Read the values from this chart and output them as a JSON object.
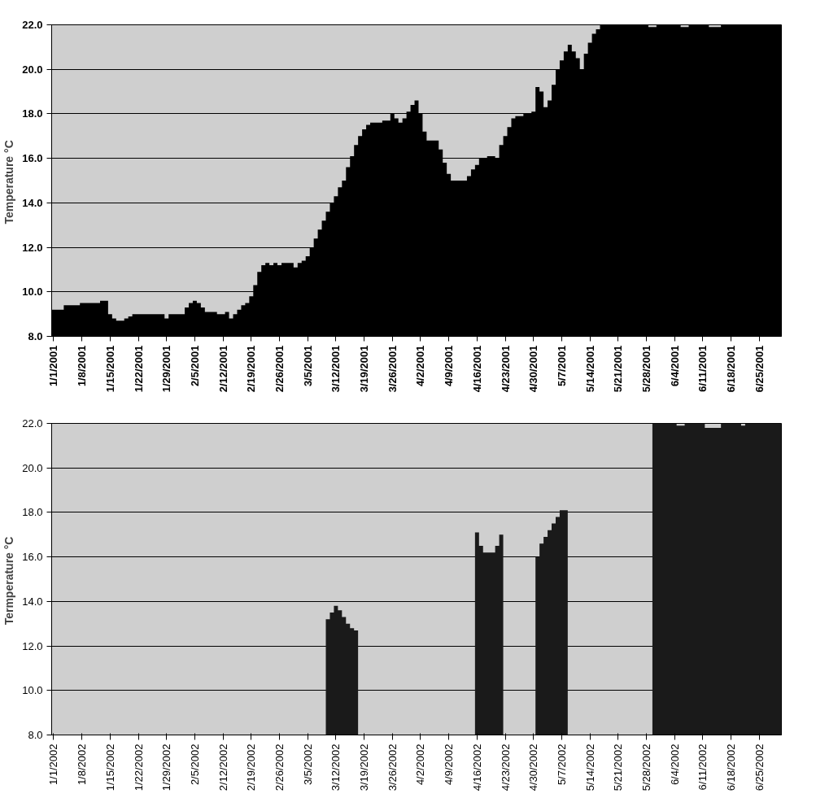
{
  "chart_data": [
    {
      "type": "area",
      "ylabel": "Temperature  °C",
      "grid": "y",
      "xlim": [
        "2000-12-31T12:00",
        "2001-06-30T12:00"
      ],
      "ylim": [
        8,
        22
      ],
      "yticks": [
        {
          "value": 8,
          "label": "8.0"
        },
        {
          "value": 10,
          "label": "10.0"
        },
        {
          "value": 12,
          "label": "12.0"
        },
        {
          "value": 14,
          "label": "14.0"
        },
        {
          "value": 16,
          "label": "16.0"
        },
        {
          "value": 18,
          "label": "18.0"
        },
        {
          "value": 20,
          "label": "20.0"
        },
        {
          "value": 22,
          "label": "22.0"
        }
      ],
      "xticks": [
        {
          "value": "2001-01-01",
          "label": "1/1/2001"
        },
        {
          "value": "2001-01-08",
          "label": "1/8/2001"
        },
        {
          "value": "2001-01-15",
          "label": "1/15/2001"
        },
        {
          "value": "2001-01-22",
          "label": "1/22/2001"
        },
        {
          "value": "2001-01-29",
          "label": "1/29/2001"
        },
        {
          "value": "2001-02-05",
          "label": "2/5/2001"
        },
        {
          "value": "2001-02-12",
          "label": "2/12/2001"
        },
        {
          "value": "2001-02-19",
          "label": "2/19/2001"
        },
        {
          "value": "2001-02-26",
          "label": "2/26/2001"
        },
        {
          "value": "2001-03-05",
          "label": "3/5/2001"
        },
        {
          "value": "2001-03-12",
          "label": "3/12/2001"
        },
        {
          "value": "2001-03-19",
          "label": "3/19/2001"
        },
        {
          "value": "2001-03-26",
          "label": "3/26/2001"
        },
        {
          "value": "2001-04-02",
          "label": "4/2/2001"
        },
        {
          "value": "2001-04-09",
          "label": "4/9/2001"
        },
        {
          "value": "2001-04-16",
          "label": "4/16/2001"
        },
        {
          "value": "2001-04-23",
          "label": "4/23/2001"
        },
        {
          "value": "2001-04-30",
          "label": "4/30/2001"
        },
        {
          "value": "2001-05-07",
          "label": "5/7/2001"
        },
        {
          "value": "2001-05-14",
          "label": "5/14/2001"
        },
        {
          "value": "2001-05-21",
          "label": "5/21/2001"
        },
        {
          "value": "2001-05-28",
          "label": "5/28/2001"
        },
        {
          "value": "2001-06-04",
          "label": "6/4/2001"
        },
        {
          "value": "2001-06-11",
          "label": "6/11/2001"
        },
        {
          "value": "2001-06-18",
          "label": "6/18/2001"
        },
        {
          "value": "2001-06-25",
          "label": "6/25/2001"
        }
      ],
      "series": [
        {
          "color": "#000000",
          "x": [
            "2001-01-01",
            "2001-01-02",
            "2001-01-03",
            "2001-01-04",
            "2001-01-05",
            "2001-01-06",
            "2001-01-07",
            "2001-01-08",
            "2001-01-09",
            "2001-01-10",
            "2001-01-11",
            "2001-01-12",
            "2001-01-13",
            "2001-01-14",
            "2001-01-15",
            "2001-01-16",
            "2001-01-17",
            "2001-01-18",
            "2001-01-19",
            "2001-01-20",
            "2001-01-21",
            "2001-01-22",
            "2001-01-23",
            "2001-01-24",
            "2001-01-25",
            "2001-01-26",
            "2001-01-27",
            "2001-01-28",
            "2001-01-29",
            "2001-01-30",
            "2001-01-31",
            "2001-02-01",
            "2001-02-02",
            "2001-02-03",
            "2001-02-04",
            "2001-02-05",
            "2001-02-06",
            "2001-02-07",
            "2001-02-08",
            "2001-02-09",
            "2001-02-10",
            "2001-02-11",
            "2001-02-12",
            "2001-02-13",
            "2001-02-14",
            "2001-02-15",
            "2001-02-16",
            "2001-02-17",
            "2001-02-18",
            "2001-02-19",
            "2001-02-20",
            "2001-02-21",
            "2001-02-22",
            "2001-02-23",
            "2001-02-24",
            "2001-02-25",
            "2001-02-26",
            "2001-02-27",
            "2001-02-28",
            "2001-03-01",
            "2001-03-02",
            "2001-03-03",
            "2001-03-04",
            "2001-03-05",
            "2001-03-06",
            "2001-03-07",
            "2001-03-08",
            "2001-03-09",
            "2001-03-10",
            "2001-03-11",
            "2001-03-12",
            "2001-03-13",
            "2001-03-14",
            "2001-03-15",
            "2001-03-16",
            "2001-03-17",
            "2001-03-18",
            "2001-03-19",
            "2001-03-20",
            "2001-03-21",
            "2001-03-22",
            "2001-03-23",
            "2001-03-24",
            "2001-03-25",
            "2001-03-26",
            "2001-03-27",
            "2001-03-28",
            "2001-03-29",
            "2001-03-30",
            "2001-03-31",
            "2001-04-01",
            "2001-04-02",
            "2001-04-03",
            "2001-04-04",
            "2001-04-05",
            "2001-04-06",
            "2001-04-07",
            "2001-04-08",
            "2001-04-09",
            "2001-04-10",
            "2001-04-11",
            "2001-04-12",
            "2001-04-13",
            "2001-04-14",
            "2001-04-15",
            "2001-04-16",
            "2001-04-17",
            "2001-04-18",
            "2001-04-19",
            "2001-04-20",
            "2001-04-21",
            "2001-04-22",
            "2001-04-23",
            "2001-04-24",
            "2001-04-25",
            "2001-04-26",
            "2001-04-27",
            "2001-04-28",
            "2001-04-29",
            "2001-04-30",
            "2001-05-01",
            "2001-05-02",
            "2001-05-03",
            "2001-05-04",
            "2001-05-05",
            "2001-05-06",
            "2001-05-07",
            "2001-05-08",
            "2001-05-09",
            "2001-05-10",
            "2001-05-11",
            "2001-05-12",
            "2001-05-13",
            "2001-05-14",
            "2001-05-15",
            "2001-05-16",
            "2001-05-17",
            "2001-05-18",
            "2001-05-19",
            "2001-05-20",
            "2001-05-21",
            "2001-05-22",
            "2001-05-23",
            "2001-05-24",
            "2001-05-25",
            "2001-05-26",
            "2001-05-27",
            "2001-05-28",
            "2001-05-29",
            "2001-05-30",
            "2001-05-31",
            "2001-06-01",
            "2001-06-02",
            "2001-06-03",
            "2001-06-04",
            "2001-06-05",
            "2001-06-06",
            "2001-06-07",
            "2001-06-08",
            "2001-06-09",
            "2001-06-10",
            "2001-06-11",
            "2001-06-12",
            "2001-06-13",
            "2001-06-14",
            "2001-06-15",
            "2001-06-16",
            "2001-06-17",
            "2001-06-18",
            "2001-06-19",
            "2001-06-20",
            "2001-06-21",
            "2001-06-22",
            "2001-06-23",
            "2001-06-24",
            "2001-06-25",
            "2001-06-26",
            "2001-06-27",
            "2001-06-28",
            "2001-06-29",
            "2001-06-30"
          ],
          "values": [
            9.2,
            9.2,
            9.2,
            9.4,
            9.4,
            9.4,
            9.4,
            9.5,
            9.5,
            9.5,
            9.5,
            9.5,
            9.6,
            9.6,
            9.0,
            8.8,
            8.7,
            8.7,
            8.8,
            8.9,
            9.0,
            9.0,
            9.0,
            9.0,
            9.0,
            9.0,
            9.0,
            9.0,
            8.8,
            9.0,
            9.0,
            9.0,
            9.0,
            9.3,
            9.5,
            9.6,
            9.5,
            9.3,
            9.1,
            9.1,
            9.1,
            9.0,
            9.0,
            9.1,
            8.8,
            9.0,
            9.2,
            9.4,
            9.5,
            9.8,
            10.3,
            10.9,
            11.2,
            11.3,
            11.2,
            11.3,
            11.2,
            11.3,
            11.3,
            11.3,
            11.1,
            11.3,
            11.4,
            11.6,
            12.0,
            12.4,
            12.8,
            13.2,
            13.6,
            14.0,
            14.3,
            14.7,
            15.0,
            15.6,
            16.1,
            16.6,
            17.0,
            17.3,
            17.5,
            17.6,
            17.6,
            17.6,
            17.7,
            17.7,
            18.0,
            17.8,
            17.6,
            17.8,
            18.1,
            18.4,
            18.6,
            18.0,
            17.2,
            16.8,
            16.8,
            16.8,
            16.4,
            15.8,
            15.3,
            15.0,
            15.0,
            15.0,
            15.0,
            15.2,
            15.5,
            15.7,
            16.0,
            16.0,
            16.1,
            16.1,
            16.0,
            16.6,
            17.0,
            17.4,
            17.8,
            17.9,
            17.9,
            18.0,
            18.0,
            18.1,
            19.2,
            19.0,
            18.3,
            18.6,
            19.3,
            20.0,
            20.4,
            20.8,
            21.1,
            20.8,
            20.5,
            20.0,
            20.7,
            21.2,
            21.6,
            21.8,
            22.0,
            22.0,
            22.0,
            22.0,
            22.0,
            22.0,
            22.0,
            22.0,
            22.0,
            22.0,
            22.0,
            22.0,
            21.9,
            21.9,
            22.0,
            22.0,
            22.0,
            22.0,
            22.0,
            22.0,
            21.9,
            21.9,
            22.0,
            22.0,
            22.0,
            22.0,
            22.0,
            21.9,
            21.9,
            21.9,
            22.0,
            22.0,
            22.0,
            22.0,
            22.0,
            22.0,
            22.0,
            22.0,
            22.0,
            22.0,
            22.0,
            22.0,
            22.0,
            22.0,
            22.0
          ]
        }
      ]
    },
    {
      "type": "area",
      "ylabel": "Termperature  °C",
      "grid": "y",
      "xlim": [
        "2001-12-31T12:00",
        "2002-06-30T12:00"
      ],
      "ylim": [
        8,
        22
      ],
      "yticks": [
        {
          "value": 8,
          "label": "8.0"
        },
        {
          "value": 10,
          "label": "10.0"
        },
        {
          "value": 12,
          "label": "12.0"
        },
        {
          "value": 14,
          "label": "14.0"
        },
        {
          "value": 16,
          "label": "16.0"
        },
        {
          "value": 18,
          "label": "18.0"
        },
        {
          "value": 20,
          "label": "20.0"
        },
        {
          "value": 22,
          "label": "22.0"
        }
      ],
      "xticks": [
        {
          "value": "2002-01-01",
          "label": "1/1/2002"
        },
        {
          "value": "2002-01-08",
          "label": "1/8/2002"
        },
        {
          "value": "2002-01-15",
          "label": "1/15/2002"
        },
        {
          "value": "2002-01-22",
          "label": "1/22/2002"
        },
        {
          "value": "2002-01-29",
          "label": "1/29/2002"
        },
        {
          "value": "2002-02-05",
          "label": "2/5/2002"
        },
        {
          "value": "2002-02-12",
          "label": "2/12/2002"
        },
        {
          "value": "2002-02-19",
          "label": "2/19/2002"
        },
        {
          "value": "2002-02-26",
          "label": "2/26/2002"
        },
        {
          "value": "2002-03-05",
          "label": "3/5/2002"
        },
        {
          "value": "2002-03-12",
          "label": "3/12/2002"
        },
        {
          "value": "2002-03-19",
          "label": "3/19/2002"
        },
        {
          "value": "2002-03-26",
          "label": "3/26/2002"
        },
        {
          "value": "2002-04-02",
          "label": "4/2/2002"
        },
        {
          "value": "2002-04-09",
          "label": "4/9/2002"
        },
        {
          "value": "2002-04-16",
          "label": "4/16/2002"
        },
        {
          "value": "2002-04-23",
          "label": "4/23/2002"
        },
        {
          "value": "2002-04-30",
          "label": "4/30/2002"
        },
        {
          "value": "2002-05-07",
          "label": "5/7/2002"
        },
        {
          "value": "2002-05-14",
          "label": "5/14/2002"
        },
        {
          "value": "2002-05-21",
          "label": "5/21/2002"
        },
        {
          "value": "2002-05-28",
          "label": "5/28/2002"
        },
        {
          "value": "2002-06-04",
          "label": "6/4/2002"
        },
        {
          "value": "2002-06-11",
          "label": "6/11/2002"
        },
        {
          "value": "2002-06-18",
          "label": "6/18/2002"
        },
        {
          "value": "2002-06-25",
          "label": "6/25/2002"
        }
      ],
      "series": [
        {
          "color": "#1a1a1a",
          "x": [
            "2002-03-10",
            "2002-03-11",
            "2002-03-12",
            "2002-03-13",
            "2002-03-14",
            "2002-03-15",
            "2002-03-16",
            "2002-03-17",
            "2002-04-16",
            "2002-04-17",
            "2002-04-18",
            "2002-04-19",
            "2002-04-20",
            "2002-04-21",
            "2002-04-22",
            "2002-05-01",
            "2002-05-02",
            "2002-05-03",
            "2002-05-04",
            "2002-05-05",
            "2002-05-06",
            "2002-05-07",
            "2002-05-08",
            "2002-05-30",
            "2002-05-31",
            "2002-06-01",
            "2002-06-02",
            "2002-06-03",
            "2002-06-04",
            "2002-06-05",
            "2002-06-06",
            "2002-06-07",
            "2002-06-08",
            "2002-06-09",
            "2002-06-10",
            "2002-06-11",
            "2002-06-12",
            "2002-06-13",
            "2002-06-14",
            "2002-06-15",
            "2002-06-16",
            "2002-06-17",
            "2002-06-18",
            "2002-06-19",
            "2002-06-20",
            "2002-06-21",
            "2002-06-22",
            "2002-06-23",
            "2002-06-24",
            "2002-06-25",
            "2002-06-26",
            "2002-06-27",
            "2002-06-28",
            "2002-06-29",
            "2002-06-30"
          ],
          "values": [
            13.2,
            13.5,
            13.8,
            13.6,
            13.3,
            13.0,
            12.8,
            12.7,
            17.1,
            16.5,
            16.2,
            16.2,
            16.2,
            16.5,
            17.0,
            16.0,
            16.6,
            16.9,
            17.2,
            17.5,
            17.8,
            18.1,
            18.1,
            22.0,
            22.0,
            22.0,
            22.0,
            22.0,
            22.0,
            21.9,
            21.9,
            22.0,
            22.0,
            22.0,
            22.0,
            22.0,
            21.8,
            21.8,
            21.8,
            21.8,
            22.0,
            22.0,
            22.0,
            22.0,
            22.0,
            21.9,
            22.0,
            22.0,
            22.0,
            22.0,
            22.0,
            22.0,
            22.0,
            22.0,
            22.0
          ]
        }
      ]
    }
  ]
}
